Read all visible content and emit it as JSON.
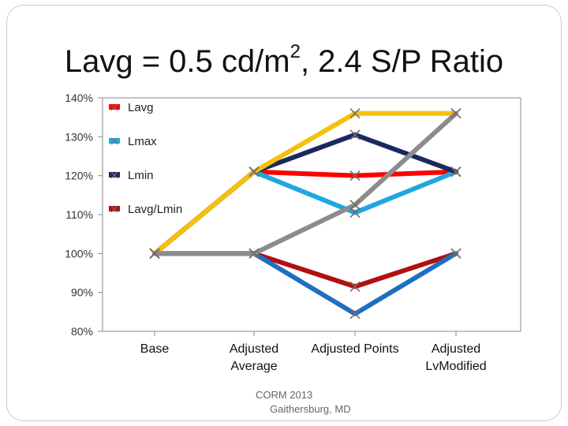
{
  "slide": {
    "title_main": "Lavg = 0.5 cd/m",
    "title_sup": "2",
    "title_rest": ", 2.4 S/P Ratio",
    "footer_line1": "CORM 2013",
    "footer_line2": "Gaithersburg, MD"
  },
  "chart_data": {
    "type": "line",
    "title": "Lavg = 0.5 cd/m2, 2.4 S/P Ratio",
    "categories": [
      "Base",
      "Adjusted Average",
      "Adjusted Points",
      "Adjusted Lv Modified"
    ],
    "category_labels": [
      [
        "Base"
      ],
      [
        "Adjusted",
        "Average"
      ],
      [
        "Adjusted Points"
      ],
      [
        "Adjusted",
        "LvModified"
      ]
    ],
    "ylim": [
      80,
      140
    ],
    "yticks": [
      80,
      90,
      100,
      110,
      120,
      130,
      140
    ],
    "ytick_labels": [
      "80%",
      "90%",
      "100%",
      "110%",
      "120%",
      "130%",
      "140%"
    ],
    "series": [
      {
        "name": "Lavg",
        "color": "#ff0000",
        "values": [
          100,
          121,
          120,
          121
        ],
        "in_legend": true
      },
      {
        "name": "Lmax",
        "color": "#1fa8e0",
        "values": [
          100,
          121,
          110.5,
          121
        ],
        "in_legend": true
      },
      {
        "name": "Lmin",
        "color": "#1a2a5e",
        "values": [
          100,
          121,
          130.5,
          121
        ],
        "in_legend": true
      },
      {
        "name": "Lavg/Lmin",
        "color": "#b01010",
        "values": [
          100,
          100,
          91.5,
          100
        ],
        "in_legend": true
      },
      {
        "name": "",
        "color": "#1f6fc0",
        "values": [
          100,
          100,
          84.5,
          100
        ],
        "in_legend": false
      },
      {
        "name": "",
        "color": "#f5c10a",
        "values": [
          100,
          121,
          136,
          136
        ],
        "in_legend": false
      },
      {
        "name": "",
        "color": "#8c8c8c",
        "values": [
          100,
          100,
          112.5,
          136
        ],
        "in_legend": false
      }
    ],
    "legend_position": "top-left inside",
    "grid": false,
    "marker": "x"
  }
}
